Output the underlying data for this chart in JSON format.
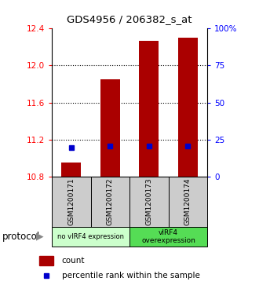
{
  "title": "GDS4956 / 206382_s_at",
  "samples": [
    "GSM1200171",
    "GSM1200172",
    "GSM1200173",
    "GSM1200174"
  ],
  "bar_bottoms": [
    10.8,
    10.8,
    10.8,
    10.8
  ],
  "bar_tops": [
    10.95,
    11.85,
    12.27,
    12.3
  ],
  "percentile_values": [
    11.11,
    11.13,
    11.13,
    11.13
  ],
  "ylim": [
    10.8,
    12.4
  ],
  "yticks_left": [
    10.8,
    11.2,
    11.6,
    12.0,
    12.4
  ],
  "yticks_right": [
    0,
    25,
    50,
    75,
    100
  ],
  "ylim_right": [
    0,
    100
  ],
  "bar_color": "#aa0000",
  "blue_color": "#0000cc",
  "group1_label": "no vIRF4 expression",
  "group2_label": "vIRF4\noverexpression",
  "group1_color": "#ccffcc",
  "group2_color": "#55dd55",
  "protocol_label": "protocol",
  "legend_count": "count",
  "legend_percentile": "percentile rank within the sample",
  "label_area_color": "#cccccc",
  "dotted_gridlines": [
    11.2,
    11.6,
    12.0
  ]
}
